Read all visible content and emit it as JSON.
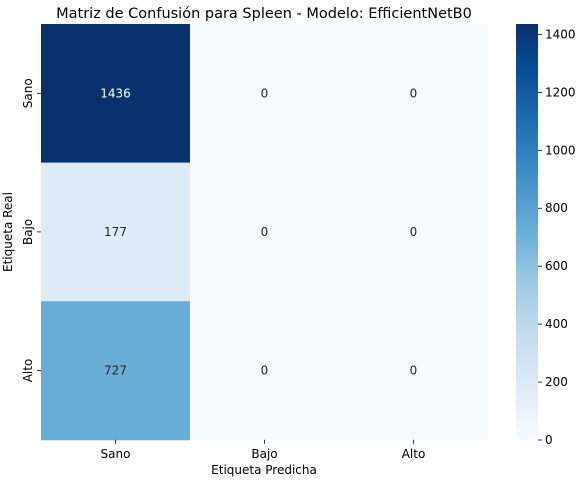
{
  "chart_data": {
    "type": "heatmap",
    "title": "Matriz de Confusión para Spleen - Modelo: EfficientNetB0",
    "xlabel": "Etiqueta Predicha",
    "ylabel": "Etiqueta Real",
    "x_categories": [
      "Sano",
      "Bajo",
      "Alto"
    ],
    "y_categories": [
      "Sano",
      "Bajo",
      "Alto"
    ],
    "matrix": [
      [
        1436,
        0,
        0
      ],
      [
        177,
        0,
        0
      ],
      [
        727,
        0,
        0
      ]
    ],
    "colormap": "Blues",
    "color_range": [
      0,
      1436
    ],
    "colorbar_ticks": [
      0,
      200,
      400,
      600,
      800,
      1000,
      1200,
      1400
    ],
    "annotate": true,
    "grid": false
  }
}
